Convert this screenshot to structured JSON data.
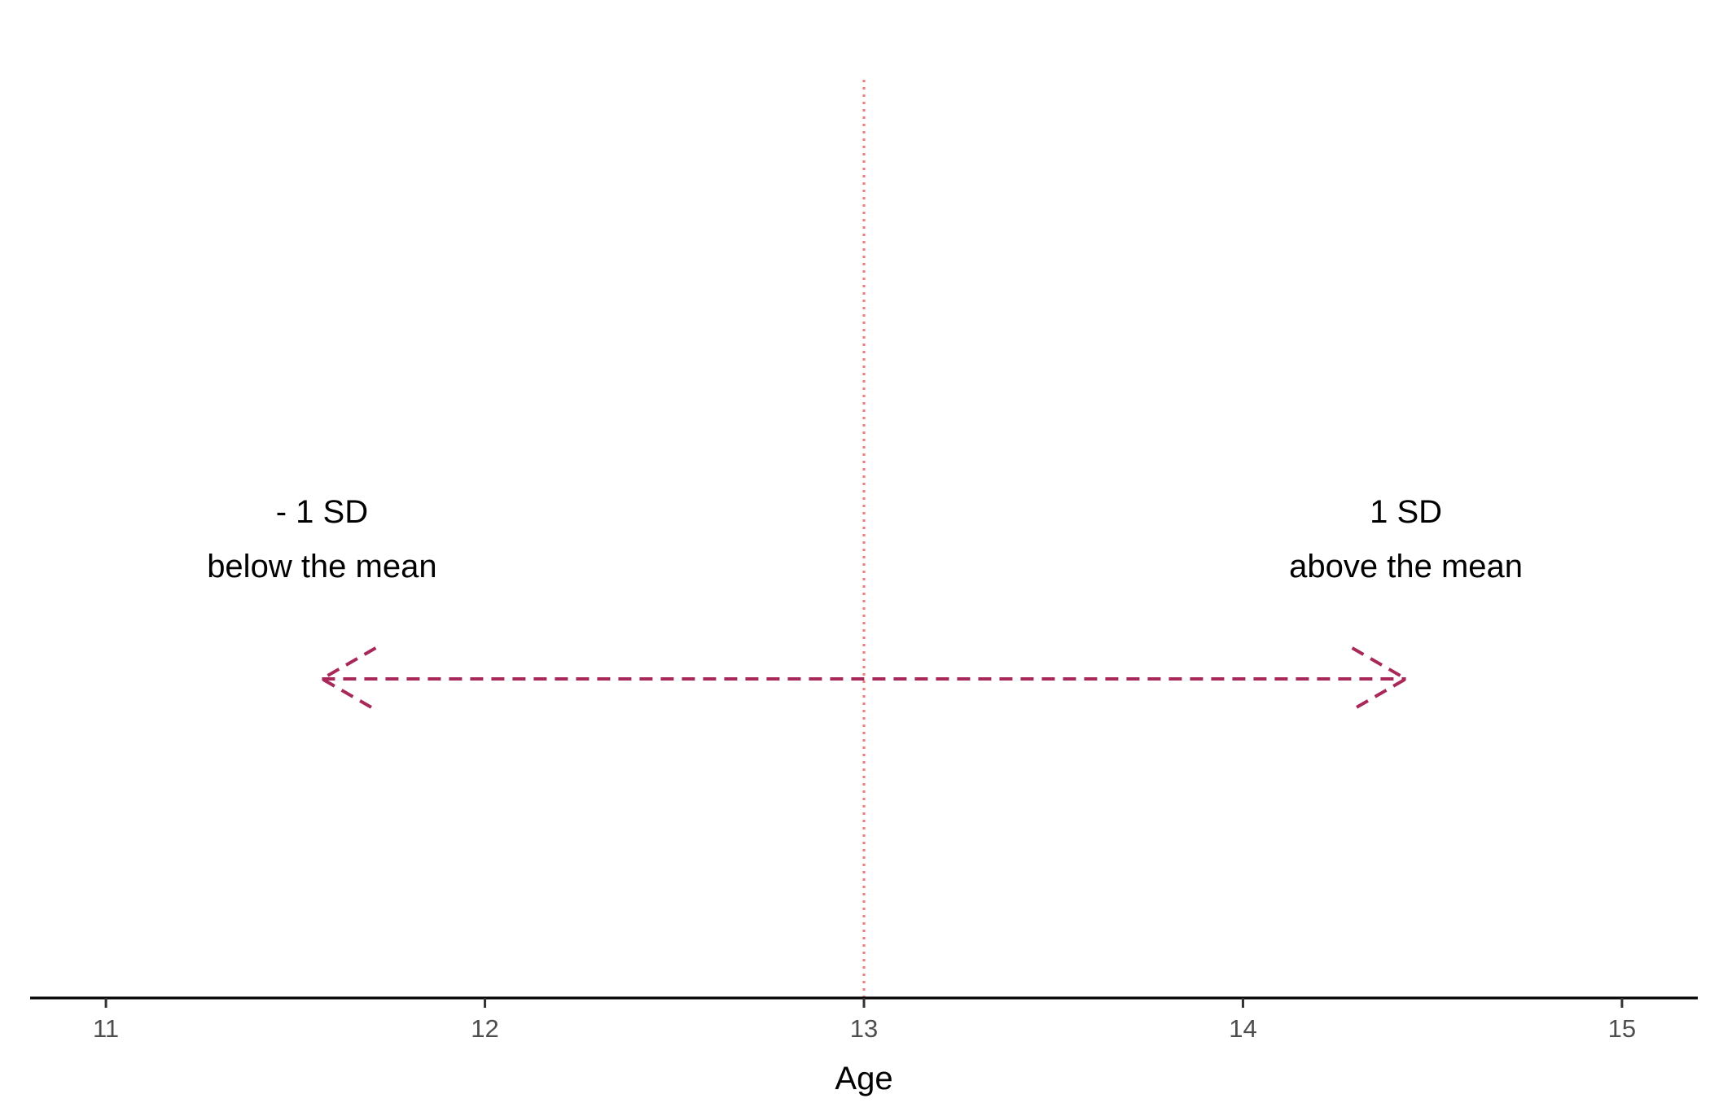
{
  "chart_data": {
    "type": "line",
    "title": "",
    "xlabel": "Age",
    "ylabel": "",
    "xlim": [
      10.8,
      15.2
    ],
    "x_ticks": [
      11,
      12,
      13,
      14,
      15
    ],
    "x_tick_labels": [
      "11",
      "12",
      "13",
      "14",
      "15"
    ],
    "grid": false,
    "legend": "none",
    "mean_line": {
      "x": 13,
      "style": "dotted",
      "color": "#F08080"
    },
    "sd_arrow": {
      "x_start": 11.57,
      "x_end": 14.43,
      "style": "dashed",
      "color": "#A8285A",
      "heads": "both"
    },
    "annotations": [
      {
        "x": 11.57,
        "lines": [
          "- 1 SD",
          "below the mean"
        ]
      },
      {
        "x": 14.43,
        "lines": [
          "1 SD",
          "above the mean"
        ]
      }
    ]
  }
}
